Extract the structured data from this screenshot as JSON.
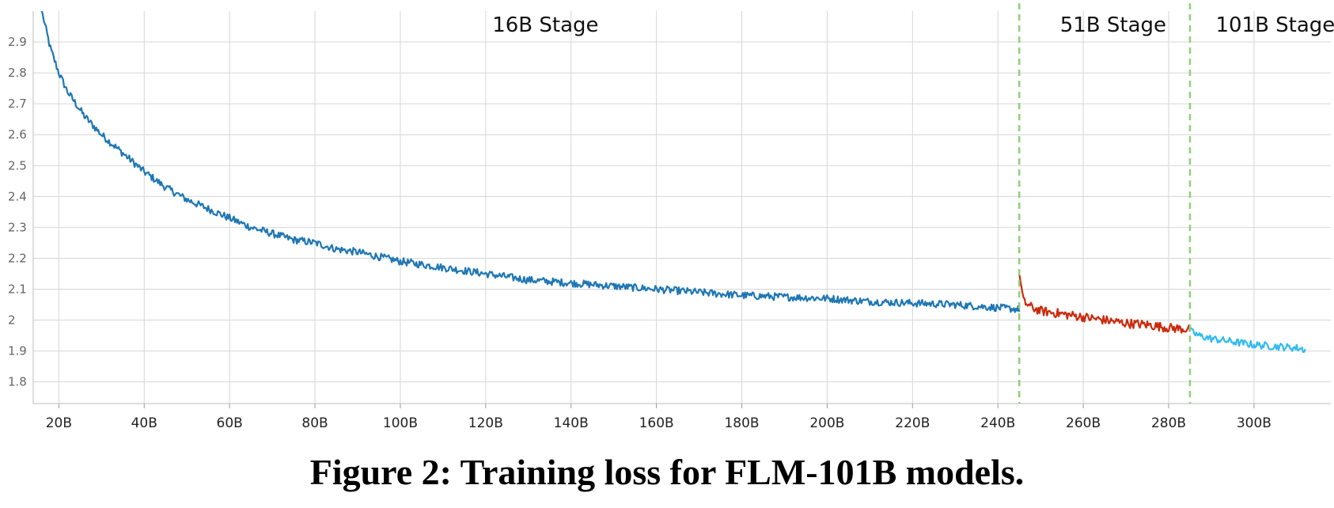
{
  "colors": {
    "stage_16b": "#1f77b4",
    "stage_51b": "#cc2a0c",
    "stage_101b": "#33bbee",
    "stage_divider": "#8fd07a",
    "grid": "#d6d6d6"
  },
  "caption": "Figure 2: Training loss for FLM-101B models.",
  "chart_data": {
    "type": "line",
    "xlabel": "",
    "ylabel": "",
    "xlim": [
      14,
      318
    ],
    "ylim": [
      1.73,
      3.0
    ],
    "grid": true,
    "x_unit_suffix": "B",
    "x_ticks": [
      20,
      40,
      60,
      80,
      100,
      120,
      140,
      160,
      180,
      200,
      220,
      240,
      260,
      280,
      300
    ],
    "y_ticks": [
      1.8,
      1.9,
      2.0,
      2.1,
      2.2,
      2.3,
      2.4,
      2.5,
      2.6,
      2.7,
      2.8,
      2.9
    ],
    "y_tick_labels": [
      "1.8",
      "1.9",
      "2",
      "2.1",
      "2.2",
      "2.3",
      "2.4",
      "2.5",
      "2.6",
      "2.7",
      "2.8",
      "2.9"
    ],
    "x_tick_labels": [
      "20B",
      "40B",
      "60B",
      "80B",
      "100B",
      "120B",
      "140B",
      "160B",
      "180B",
      "200B",
      "220B",
      "240B",
      "260B",
      "280B",
      "300B"
    ],
    "stage_boundaries": [
      245,
      285
    ],
    "stage_labels": [
      {
        "text": "16B Stage",
        "x": 134
      },
      {
        "text": "51B Stage",
        "x": 267
      },
      {
        "text": "101B Stage",
        "x": 305
      }
    ],
    "series": [
      {
        "key": "stage_16b",
        "x": [
          16,
          18,
          20,
          22,
          24,
          26,
          28,
          30,
          35,
          40,
          45,
          50,
          55,
          60,
          65,
          70,
          75,
          80,
          85,
          90,
          100,
          110,
          120,
          130,
          140,
          150,
          160,
          170,
          180,
          190,
          200,
          210,
          220,
          230,
          240,
          245
        ],
        "values": [
          3.0,
          2.88,
          2.8,
          2.74,
          2.7,
          2.66,
          2.63,
          2.6,
          2.54,
          2.48,
          2.43,
          2.39,
          2.36,
          2.33,
          2.3,
          2.28,
          2.26,
          2.25,
          2.23,
          2.22,
          2.19,
          2.17,
          2.15,
          2.13,
          2.12,
          2.11,
          2.1,
          2.09,
          2.08,
          2.075,
          2.07,
          2.06,
          2.055,
          2.05,
          2.04,
          2.035
        ],
        "noise": 0.012
      },
      {
        "key": "stage_51b",
        "x": [
          245,
          246,
          248,
          250,
          255,
          260,
          265,
          270,
          275,
          280,
          285
        ],
        "values": [
          2.15,
          2.06,
          2.04,
          2.03,
          2.02,
          2.01,
          2.0,
          1.99,
          1.985,
          1.975,
          1.97
        ],
        "noise": 0.015
      },
      {
        "key": "stage_101b",
        "x": [
          285,
          287,
          290,
          295,
          300,
          305,
          310,
          312
        ],
        "values": [
          1.965,
          1.95,
          1.94,
          1.93,
          1.92,
          1.915,
          1.91,
          1.905
        ],
        "noise": 0.012
      }
    ]
  }
}
